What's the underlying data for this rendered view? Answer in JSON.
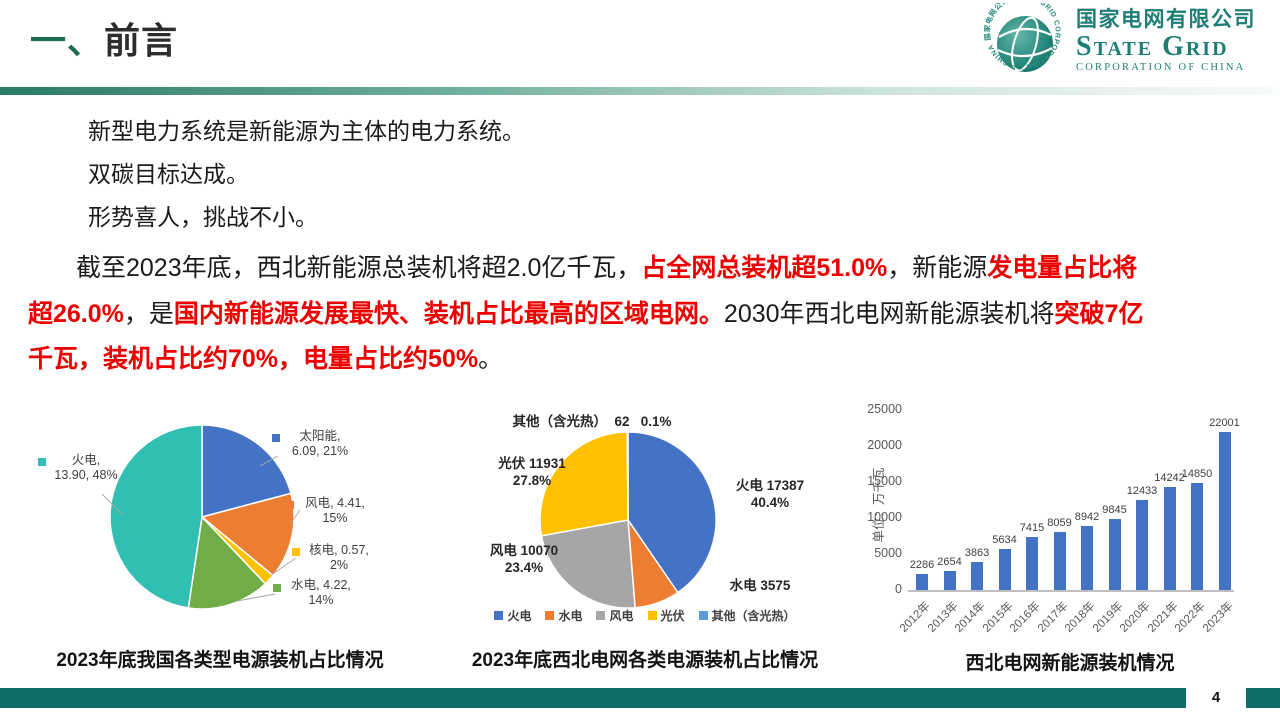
{
  "header": {
    "title_prefix": "一、",
    "title": "前言",
    "logo": {
      "cn": "国家电网有限公司",
      "en_main": "State Grid",
      "en_sub": "CORPORATION OF CHINA",
      "ring_text": "国家电网公司 STATE GRID CORPORATION OF CHINA"
    }
  },
  "body": {
    "lines": [
      "新型电力系统是新能源为主体的电力系统。",
      "双碳目标达成。",
      "形势喜人，挑战不小。"
    ],
    "paragraph_lines": [
      [
        {
          "t": "截至2023年底，西北新能源总装机将超2.0亿千瓦，",
          "red": false
        },
        {
          "t": "占全网总装机超51.0%",
          "red": true
        },
        {
          "t": "，新能源",
          "red": false
        },
        {
          "t": "发电量占比将",
          "red": true
        }
      ],
      [
        {
          "t": "超26.0%",
          "red": true
        },
        {
          "t": "，是",
          "red": false
        },
        {
          "t": "国内新能源发展最快、装机占比最高的区域电网。",
          "red": true
        },
        {
          "t": "2030年西北电网新能源装机将",
          "red": false
        },
        {
          "t": "突破7亿",
          "red": true
        }
      ],
      [
        {
          "t": "千瓦，装机占比约70%，电量占比约50%",
          "red": true
        },
        {
          "t": "。",
          "red": false
        }
      ]
    ]
  },
  "chart_data": [
    {
      "type": "pie",
      "title": "2023年底我国各类型电源装机占比情况",
      "series": [
        {
          "name": "太阳能",
          "value": 6.09,
          "pct": "21%",
          "color": "#4472C4",
          "label_lines": [
            "太阳能,",
            "6.09, 21%"
          ]
        },
        {
          "name": "风电",
          "value": 4.41,
          "pct": "15%",
          "color": "#ED7D31",
          "label_lines": [
            "风电, 4.41,",
            "15%"
          ]
        },
        {
          "name": "核电",
          "value": 0.57,
          "pct": "2%",
          "color": "#FFC000",
          "label_lines": [
            "核电, 0.57,",
            "2%"
          ]
        },
        {
          "name": "水电",
          "value": 4.22,
          "pct": "14%",
          "color": "#70AD47",
          "label_lines": [
            "水电, 4.22,",
            "14%"
          ]
        },
        {
          "name": "火电",
          "value": 13.9,
          "pct": "48%",
          "color": "#30BFB2",
          "label_lines": [
            "火电,",
            "13.90, 48%"
          ]
        }
      ]
    },
    {
      "type": "pie",
      "title": "2023年底西北电网各类电源装机占比情况",
      "series": [
        {
          "name": "火电",
          "value": 17387,
          "pct": "40.4%",
          "color": "#4472C4",
          "label_lines": [
            "火电 17387",
            "40.4%"
          ]
        },
        {
          "name": "水电",
          "value": 3575,
          "pct": "",
          "color": "#ED7D31",
          "label_lines": [
            "水电 3575"
          ]
        },
        {
          "name": "风电",
          "value": 10070,
          "pct": "23.4%",
          "color": "#A6A6A6",
          "label_lines": [
            "风电 10070",
            "23.4%"
          ]
        },
        {
          "name": "光伏",
          "value": 11931,
          "pct": "27.8%",
          "color": "#FFC000",
          "label_lines": [
            "光伏 11931",
            "27.8%"
          ]
        },
        {
          "name": "其他（含光热）",
          "value": 62,
          "pct": "0.1%",
          "color": "#5B9BD5",
          "label_lines": [
            "其他（含光热）  62   0.1%"
          ]
        }
      ],
      "legend": [
        "火电",
        "水电",
        "风电",
        "光伏",
        "其他（含光热）"
      ]
    },
    {
      "type": "bar",
      "title": "西北电网新能源装机情况",
      "ylabel": "单位：万千瓦",
      "categories": [
        "2012年",
        "2013年",
        "2014年",
        "2015年",
        "2016年",
        "2017年",
        "2018年",
        "2019年",
        "2020年",
        "2021年",
        "2022年",
        "2023年"
      ],
      "values": [
        2286,
        2654,
        3863,
        5634,
        7415,
        8059,
        8942,
        9845,
        12433,
        14242,
        14850,
        22001
      ],
      "yticks": [
        0,
        5000,
        10000,
        15000,
        20000,
        25000
      ],
      "ylim": [
        0,
        25000
      ],
      "bar_color": "#4472C4",
      "grid": false,
      "legend_position": "none"
    }
  ],
  "footer": {
    "page": "4"
  },
  "colors": {
    "footer_teal": "#0E6E67",
    "logo_teal": "#1E7E76",
    "title_green": "#1A6B52",
    "highlight_red": "#ED0000"
  }
}
